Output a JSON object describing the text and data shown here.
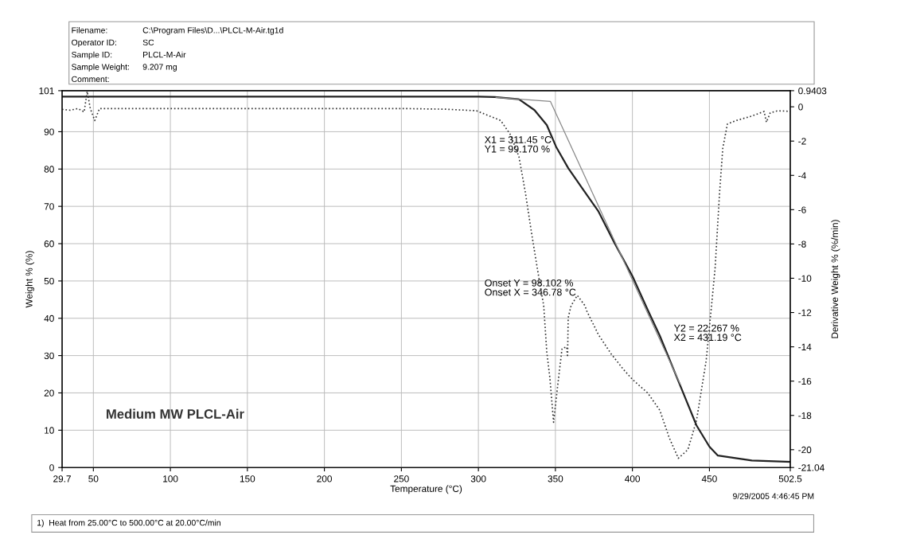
{
  "chart_data": {
    "type": "line",
    "title": "Medium MW PLCL-Air",
    "xlabel": "Temperature (°C)",
    "ylabel": "Weight % (%)",
    "y2label": "Derivative Weight % (%/min)",
    "annotations": [
      "Filename:",
      "Operator ID:",
      "Sample ID:",
      "Sample Weight:",
      "Comment:",
      "C:\\Program Files\\D...\\PLCL-M-Air.tg1d",
      "SC",
      "PLCL-M-Air",
      "9.207 mg",
      "X1 = 311.45 °C\nY1 = 99.170 %",
      "Onset Y = 98.102 %\nOnset X = 346.78 °C",
      "Y2 = 22.267 %\nX2 = 431.19 °C",
      "9/29/2005 4:46:45 PM",
      "1)  Heat from 25.00°C to 500.00°C at 20.00°C/min"
    ],
    "series": [
      {
        "color": "#222222",
        "line_style": "solid",
        "x": [
          29.7,
          100,
          200,
          280,
          300,
          310.6,
          326.3,
          336.4,
          344.4,
          350.4,
          358.4,
          368.2,
          378,
          388.1,
          400,
          410,
          417.8,
          431.8,
          441.6,
          450,
          455.5,
          477.5,
          502.5
        ],
        "values": [
          99.4,
          99.4,
          99.4,
          99.4,
          99.4,
          99.3,
          98.7,
          95.8,
          91.8,
          86,
          80.2,
          74.4,
          68.6,
          60.4,
          51.3,
          42.2,
          35.3,
          21.2,
          11.3,
          5.6,
          3.2,
          1.9,
          1.5
        ]
      },
      {
        "color": "#888888",
        "line_style": "solid",
        "x": [
          311.45,
          346.78,
          431.19
        ],
        "values": [
          99.17,
          98.102,
          22.267
        ]
      },
      {
        "color": "#333333",
        "line_style": "dotted",
        "axis": "y2",
        "x": [
          29.7,
          35,
          40,
          44,
          46,
          48,
          50.9,
          54,
          100,
          150,
          200,
          250,
          278.8,
          298.7,
          314.5,
          320.6,
          326.3,
          330.5,
          334.4,
          338.2,
          342.4,
          344.4,
          346.4,
          348.8,
          351.3,
          354.3,
          357.3,
          357.9,
          358.3,
          360.2,
          364.2,
          369.2,
          370.3,
          378,
          386.1,
          394,
          400,
          410,
          417.8,
          423.9,
          429.8,
          436,
          441.6,
          447.9,
          451.8,
          453.7,
          456.6,
          458.7,
          461.7,
          467.4,
          477.5,
          485.5,
          487,
          489.5,
          494.3,
          502.5
        ],
        "values": [
          -0.15,
          -0.2,
          -0.1,
          -0.3,
          0.9,
          -0.1,
          -0.8,
          -0.1,
          -0.1,
          -0.1,
          -0.1,
          -0.1,
          -0.14,
          -0.23,
          -0.8,
          -1.6,
          -2.9,
          -5,
          -7.3,
          -9.4,
          -11.6,
          -14.3,
          -15.8,
          -18.4,
          -16.4,
          -14.1,
          -14,
          -14.6,
          -12.3,
          -11.6,
          -11,
          -11.6,
          -11.9,
          -13.3,
          -14.4,
          -15.3,
          -15.9,
          -16.7,
          -17.7,
          -19.3,
          -20.5,
          -20,
          -18.3,
          -14.8,
          -11.2,
          -9.4,
          -5,
          -2.4,
          -1,
          -0.8,
          -0.54,
          -0.27,
          -0.9,
          -0.35,
          -0.23,
          -0.27
        ]
      }
    ],
    "xlim": [
      29.7,
      502.5
    ],
    "xticks": [
      29.7,
      50,
      100,
      150,
      200,
      250,
      300,
      350,
      400,
      450,
      502.5
    ],
    "ylim": [
      0,
      101
    ],
    "yticks": [
      0,
      10,
      20,
      30,
      40,
      50,
      60,
      70,
      80,
      90,
      101
    ],
    "y2lim": [
      -21.04,
      0.9403
    ],
    "y2ticks": [
      -21.04,
      -20,
      -18,
      -16,
      -14,
      -12,
      -10,
      -8,
      -6,
      -4,
      -2,
      0,
      0.9403
    ],
    "grid": true,
    "legend": false,
    "marker": "none"
  }
}
